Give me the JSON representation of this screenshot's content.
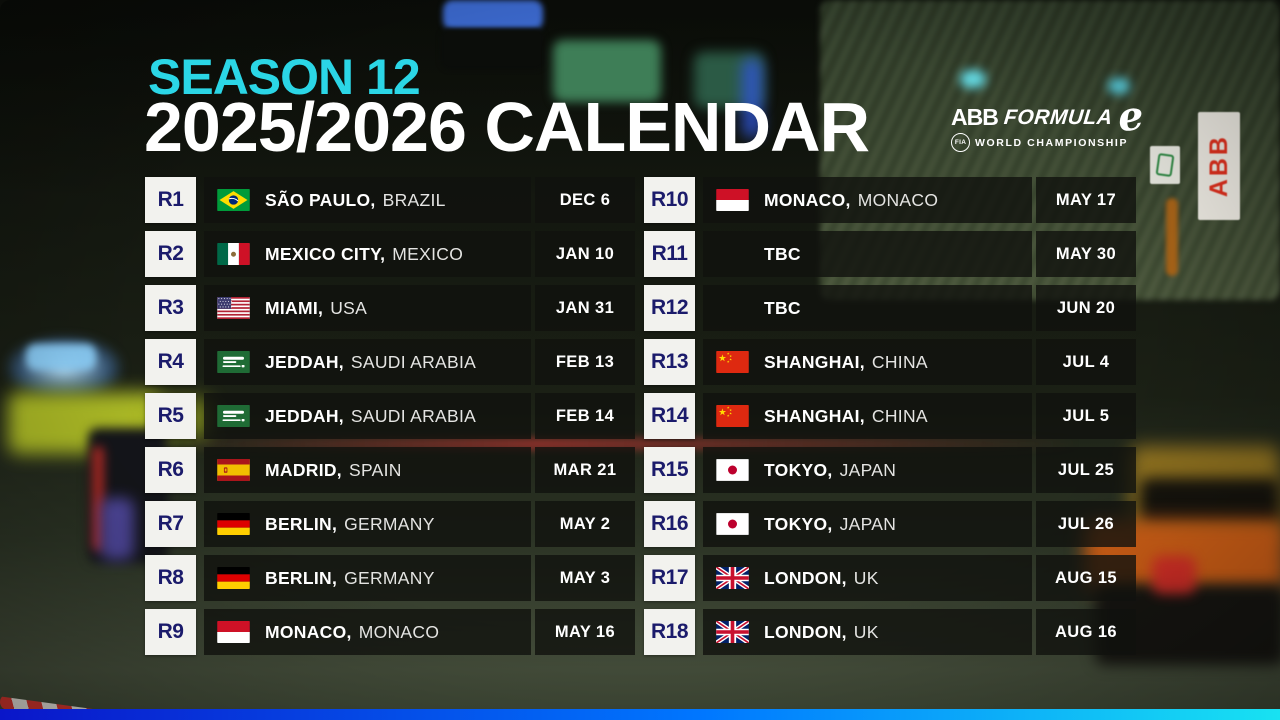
{
  "header": {
    "season_label": "SEASON 12",
    "title": "2025/2026 CALENDAR"
  },
  "logo": {
    "abb": "ABB",
    "formula": "FORMULA",
    "e_mark": "e",
    "fia": "FIA",
    "subtitle": "WORLD CHAMPIONSHIP"
  },
  "background": {
    "trackside_banner_text": "ABB"
  },
  "colors": {
    "accent_cyan": "#2BD6E6",
    "brand_navy": "#1B1B6B",
    "round_box_bg": "#F2F2EE",
    "row_bg": "rgba(16,18,14,0.8)",
    "bottom_bar_gradient": [
      "#0A16C9",
      "#0077FF",
      "#18E2F2"
    ]
  },
  "calendar": {
    "columns": [
      {
        "rows": [
          {
            "round": "R1",
            "flag": "brazil",
            "city": "SÃO PAULO,",
            "country": "BRAZIL",
            "date": "DEC 6"
          },
          {
            "round": "R2",
            "flag": "mexico",
            "city": "MEXICO CITY,",
            "country": "MEXICO",
            "date": "JAN 10"
          },
          {
            "round": "R3",
            "flag": "usa",
            "city": "MIAMI,",
            "country": "USA",
            "date": "JAN 31"
          },
          {
            "round": "R4",
            "flag": "saudi-arabia",
            "city": "JEDDAH,",
            "country": "SAUDI ARABIA",
            "date": "FEB 13"
          },
          {
            "round": "R5",
            "flag": "saudi-arabia",
            "city": "JEDDAH,",
            "country": "SAUDI ARABIA",
            "date": "FEB 14"
          },
          {
            "round": "R6",
            "flag": "spain",
            "city": "MADRID,",
            "country": "SPAIN",
            "date": "MAR 21"
          },
          {
            "round": "R7",
            "flag": "germany",
            "city": "BERLIN,",
            "country": "GERMANY",
            "date": "MAY 2"
          },
          {
            "round": "R8",
            "flag": "germany",
            "city": "BERLIN,",
            "country": "GERMANY",
            "date": "MAY 3"
          },
          {
            "round": "R9",
            "flag": "monaco",
            "city": "MONACO,",
            "country": "MONACO",
            "date": "MAY 16"
          }
        ]
      },
      {
        "rows": [
          {
            "round": "R10",
            "flag": "monaco",
            "city": "MONACO,",
            "country": "MONACO",
            "date": "MAY 17"
          },
          {
            "round": "R11",
            "flag": null,
            "city": "TBC",
            "country": "",
            "date": "MAY 30"
          },
          {
            "round": "R12",
            "flag": null,
            "city": "TBC",
            "country": "",
            "date": "JUN 20"
          },
          {
            "round": "R13",
            "flag": "china",
            "city": "SHANGHAI,",
            "country": "CHINA",
            "date": "JUL 4"
          },
          {
            "round": "R14",
            "flag": "china",
            "city": "SHANGHAI,",
            "country": "CHINA",
            "date": "JUL 5"
          },
          {
            "round": "R15",
            "flag": "japan",
            "city": "TOKYO,",
            "country": "JAPAN",
            "date": "JUL 25"
          },
          {
            "round": "R16",
            "flag": "japan",
            "city": "TOKYO,",
            "country": "JAPAN",
            "date": "JUL 26"
          },
          {
            "round": "R17",
            "flag": "uk",
            "city": "LONDON,",
            "country": "UK",
            "date": "AUG 15"
          },
          {
            "round": "R18",
            "flag": "uk",
            "city": "LONDON,",
            "country": "UK",
            "date": "AUG 16"
          }
        ]
      }
    ]
  }
}
